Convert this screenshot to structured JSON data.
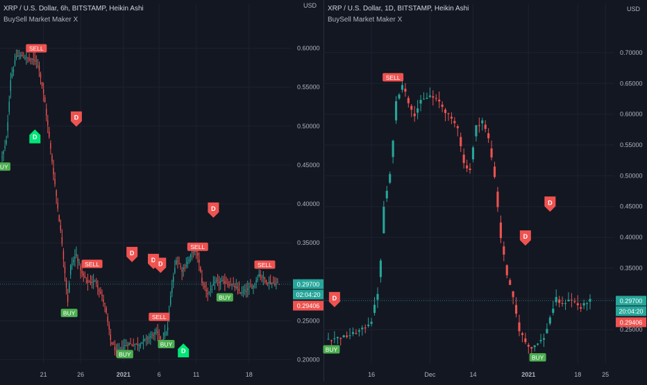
{
  "colors": {
    "background": "#131722",
    "grid": "#1e2230",
    "axis_text": "#b2b5be",
    "up": "#26a69a",
    "down": "#ef5350",
    "buy_label": "#4caf50",
    "diamond_buy": "#00e676",
    "price_badge": "#26a69a",
    "prev_badge": "#ef5350"
  },
  "panes": [
    {
      "title": "XRP / U.S. Dollar, 6h, BITSTAMP, Heikin Ashi",
      "indicator": "BuySell Market Maker X",
      "currency": "USD",
      "countdown": "02:04:20",
      "chart_data": {
        "type": "candlestick",
        "ylim": [
          0.195,
          0.63
        ],
        "y_ticks": [
          "0.20000",
          "0.25000",
          "0.30000",
          "0.35000",
          "0.40000",
          "0.45000",
          "0.50000",
          "0.55000",
          "0.60000"
        ],
        "x_ticks": [
          {
            "label": "21",
            "i": 29
          },
          {
            "label": "26",
            "i": 55
          },
          {
            "label": "2021",
            "i": 85
          },
          {
            "label": "6",
            "i": 110
          },
          {
            "label": "11",
            "i": 136
          },
          {
            "label": "18",
            "i": 173
          }
        ],
        "last_price": "0.29700",
        "prev_price": "0.29406",
        "count": 195,
        "closes": [
          [
            0,
            0.46
          ],
          [
            3,
            0.48
          ],
          [
            6,
            0.56
          ],
          [
            10,
            0.59
          ],
          [
            14,
            0.59
          ],
          [
            20,
            0.585
          ],
          [
            25,
            0.585
          ],
          [
            30,
            0.53
          ],
          [
            36,
            0.44
          ],
          [
            42,
            0.35
          ],
          [
            46,
            0.275
          ],
          [
            48,
            0.32
          ],
          [
            52,
            0.335
          ],
          [
            56,
            0.31
          ],
          [
            60,
            0.3
          ],
          [
            66,
            0.3
          ],
          [
            72,
            0.27
          ],
          [
            76,
            0.225
          ],
          [
            80,
            0.21
          ],
          [
            84,
            0.215
          ],
          [
            88,
            0.22
          ],
          [
            96,
            0.22
          ],
          [
            104,
            0.23
          ],
          [
            108,
            0.235
          ],
          [
            112,
            0.225
          ],
          [
            116,
            0.24
          ],
          [
            118,
            0.28
          ],
          [
            122,
            0.33
          ],
          [
            126,
            0.315
          ],
          [
            130,
            0.325
          ],
          [
            134,
            0.34
          ],
          [
            137,
            0.335
          ],
          [
            140,
            0.3
          ],
          [
            144,
            0.285
          ],
          [
            150,
            0.3
          ],
          [
            156,
            0.3
          ],
          [
            162,
            0.295
          ],
          [
            168,
            0.285
          ],
          [
            176,
            0.295
          ],
          [
            180,
            0.31
          ],
          [
            186,
            0.3
          ],
          [
            194,
            0.297
          ]
        ],
        "labels": [
          {
            "text": "BUY",
            "i": 0,
            "price": 0.448,
            "kind": "buy"
          },
          {
            "text": "SELL",
            "i": 24,
            "price": 0.6,
            "kind": "sell"
          },
          {
            "text": "BUY",
            "i": 47,
            "price": 0.26,
            "kind": "buy"
          },
          {
            "text": "SELL",
            "i": 63,
            "price": 0.323,
            "kind": "sell"
          },
          {
            "text": "BUY",
            "i": 86,
            "price": 0.207,
            "kind": "buy"
          },
          {
            "text": "SELL",
            "i": 110,
            "price": 0.255,
            "kind": "sell"
          },
          {
            "text": "BUY",
            "i": 115,
            "price": 0.22,
            "kind": "buy"
          },
          {
            "text": "SELL",
            "i": 137,
            "price": 0.345,
            "kind": "sell"
          },
          {
            "text": "BUY",
            "i": 156,
            "price": 0.28,
            "kind": "buy"
          },
          {
            "text": "SELL",
            "i": 184,
            "price": 0.322,
            "kind": "sell"
          }
        ],
        "markers": [
          {
            "text": "D",
            "i": 52,
            "price": 0.51,
            "kind": "sell"
          },
          {
            "text": "D",
            "i": 23,
            "price": 0.485,
            "kind": "buy"
          },
          {
            "text": "D",
            "i": 91,
            "price": 0.336,
            "kind": "sell"
          },
          {
            "text": "D",
            "i": 106,
            "price": 0.327,
            "kind": "sell"
          },
          {
            "text": "D",
            "i": 111,
            "price": 0.322,
            "kind": "sell"
          },
          {
            "text": "D",
            "i": 148,
            "price": 0.393,
            "kind": "sell"
          },
          {
            "text": "D",
            "i": 127,
            "price": 0.21,
            "kind": "buy"
          }
        ]
      }
    },
    {
      "title": "XRP / U.S. Dollar, 1D, BITSTAMP, Heikin Ashi",
      "indicator": "BuySell Market Maker X",
      "currency": "USD",
      "countdown": "20:04:20",
      "chart_data": {
        "type": "candlestick",
        "ylim": [
          0.195,
          0.745
        ],
        "y_ticks": [
          "0.25000",
          "0.30000",
          "0.35000",
          "0.40000",
          "0.45000",
          "0.50000",
          "0.55000",
          "0.60000",
          "0.65000",
          "0.70000"
        ],
        "x_ticks": [
          {
            "label": "16",
            "i": 14
          },
          {
            "label": "Dec",
            "i": 33
          },
          {
            "label": "14",
            "i": 47
          },
          {
            "label": "2021",
            "i": 65
          },
          {
            "label": "18",
            "i": 81
          },
          {
            "label": "25",
            "i": 90
          }
        ],
        "last_price": "0.29700",
        "prev_price": "0.29406",
        "count": 86,
        "closes": [
          [
            0,
            0.235
          ],
          [
            5,
            0.238
          ],
          [
            8,
            0.243
          ],
          [
            11,
            0.25
          ],
          [
            14,
            0.265
          ],
          [
            16,
            0.31
          ],
          [
            17,
            0.36
          ],
          [
            18,
            0.45
          ],
          [
            20,
            0.5
          ],
          [
            22,
            0.62
          ],
          [
            24,
            0.65
          ],
          [
            26,
            0.62
          ],
          [
            28,
            0.6
          ],
          [
            30,
            0.62
          ],
          [
            33,
            0.63
          ],
          [
            36,
            0.62
          ],
          [
            40,
            0.59
          ],
          [
            42,
            0.58
          ],
          [
            44,
            0.52
          ],
          [
            46,
            0.51
          ],
          [
            48,
            0.58
          ],
          [
            50,
            0.59
          ],
          [
            52,
            0.56
          ],
          [
            54,
            0.5
          ],
          [
            56,
            0.4
          ],
          [
            58,
            0.34
          ],
          [
            60,
            0.3
          ],
          [
            62,
            0.25
          ],
          [
            64,
            0.23
          ],
          [
            66,
            0.22
          ],
          [
            68,
            0.23
          ],
          [
            70,
            0.235
          ],
          [
            72,
            0.27
          ],
          [
            74,
            0.3
          ],
          [
            76,
            0.29
          ],
          [
            78,
            0.3
          ],
          [
            80,
            0.295
          ],
          [
            82,
            0.285
          ],
          [
            84,
            0.295
          ],
          [
            85,
            0.297
          ]
        ],
        "labels": [
          {
            "text": "BUY",
            "i": 1,
            "price": 0.218,
            "kind": "buy"
          },
          {
            "text": "SELL",
            "i": 21,
            "price": 0.66,
            "kind": "sell"
          },
          {
            "text": "BUY",
            "i": 68,
            "price": 0.205,
            "kind": "buy"
          }
        ],
        "markers": [
          {
            "text": "D",
            "i": 2,
            "price": 0.3,
            "kind": "sell"
          },
          {
            "text": "D",
            "i": 64,
            "price": 0.4,
            "kind": "sell"
          },
          {
            "text": "D",
            "i": 72,
            "price": 0.455,
            "kind": "sell"
          }
        ]
      }
    }
  ]
}
